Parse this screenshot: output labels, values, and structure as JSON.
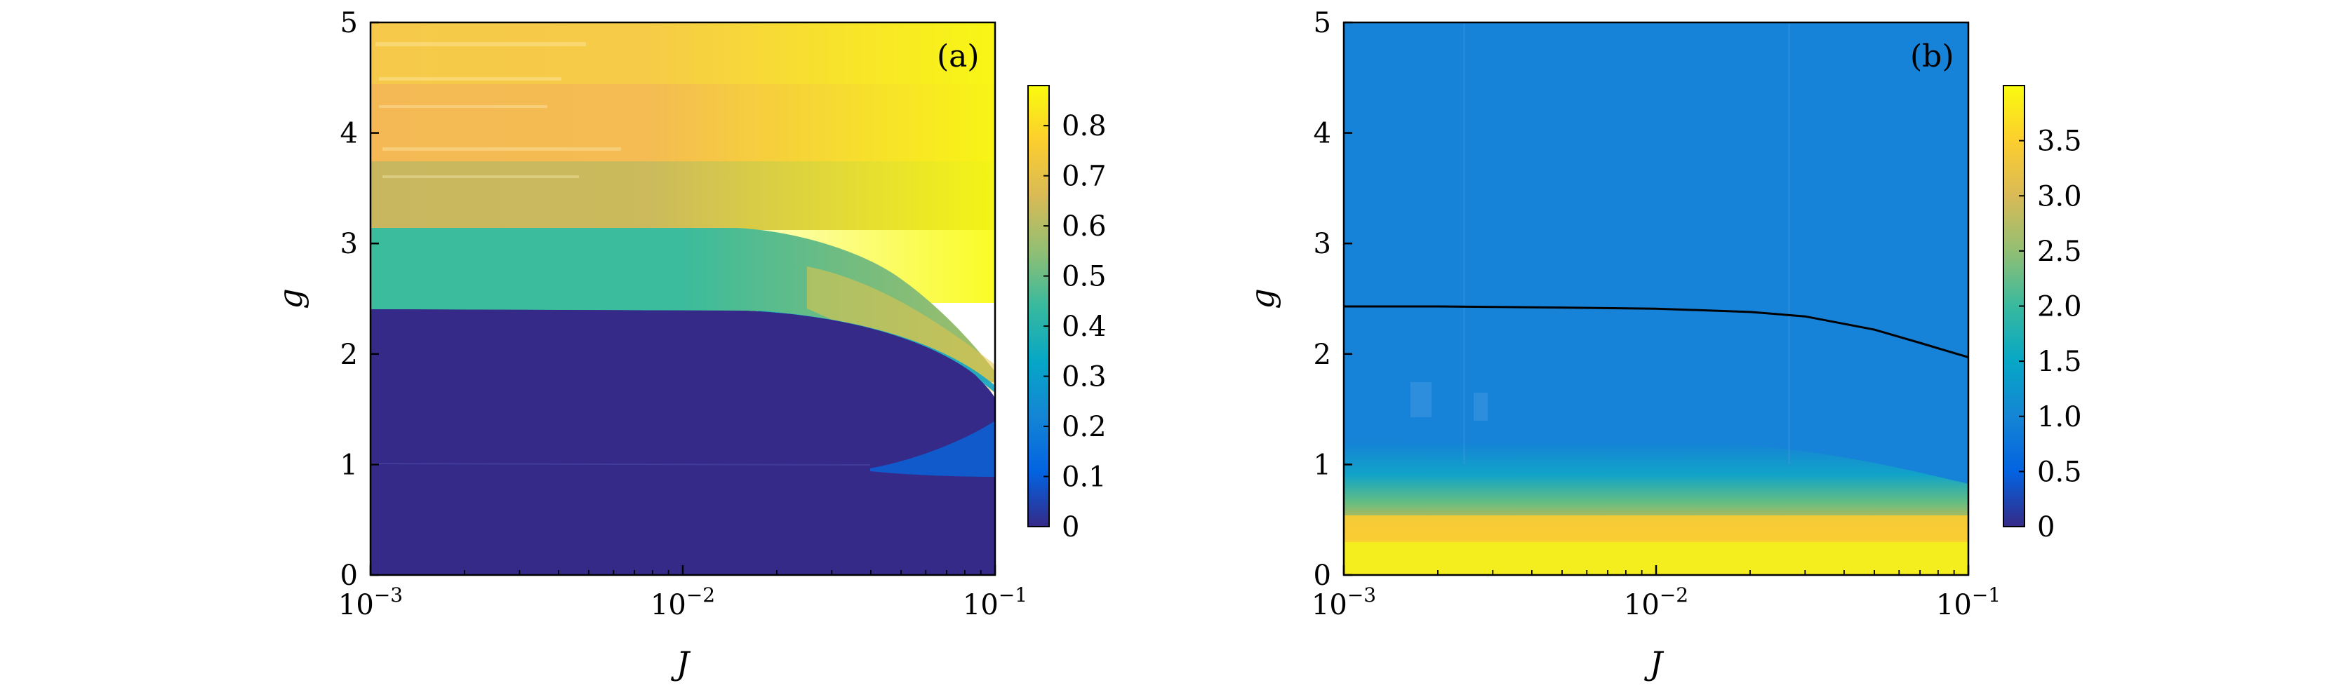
{
  "chart_data": [
    {
      "type": "heatmap",
      "panel_label": "(a)",
      "xlabel": "J",
      "ylabel": "g",
      "x_scale": "log",
      "xlim": [
        0.001,
        0.1
      ],
      "ylim": [
        0,
        5
      ],
      "x_ticks": [
        {
          "value": 0.001,
          "base": "10",
          "exp": "−3"
        },
        {
          "value": 0.01,
          "base": "10",
          "exp": "−2"
        },
        {
          "value": 0.1,
          "base": "10",
          "exp": "−1"
        }
      ],
      "y_ticks": [
        "0",
        "1",
        "2",
        "3",
        "4",
        "5"
      ],
      "colorbar": {
        "min": 0,
        "max": 0.88,
        "ticks": [
          "0",
          "0.1",
          "0.2",
          "0.3",
          "0.4",
          "0.5",
          "0.6",
          "0.7",
          "0.8"
        ]
      },
      "regions": [
        {
          "g_range": [
            0,
            0.9
          ],
          "value": 0.0
        },
        {
          "g_range": [
            0.9,
            2.4
          ],
          "value": 0.0,
          "note": "boundary narrows to tip near g≈1.3 at J=0.1"
        },
        {
          "g_range": [
            2.4,
            3.15
          ],
          "value": 0.42
        },
        {
          "g_range": [
            3.15,
            3.75
          ],
          "value": 0.66
        },
        {
          "g_range": [
            3.75,
            5.0
          ],
          "value": 0.75
        }
      ],
      "grid": false
    },
    {
      "type": "heatmap",
      "panel_label": "(b)",
      "xlabel": "J",
      "ylabel": "g",
      "x_scale": "log",
      "xlim": [
        0.001,
        0.1
      ],
      "ylim": [
        0,
        5
      ],
      "x_ticks": [
        {
          "value": 0.001,
          "base": "10",
          "exp": "−3"
        },
        {
          "value": 0.01,
          "base": "10",
          "exp": "−2"
        },
        {
          "value": 0.1,
          "base": "10",
          "exp": "−1"
        }
      ],
      "y_ticks": [
        "0",
        "1",
        "2",
        "3",
        "4",
        "5"
      ],
      "colorbar": {
        "min": 0,
        "max": 4.0,
        "ticks": [
          "0",
          "0.5",
          "1.0",
          "1.5",
          "2.0",
          "2.5",
          "3.0",
          "3.5"
        ]
      },
      "background_value": 1.05,
      "boundary_curve": {
        "J": [
          0.001,
          0.002,
          0.005,
          0.01,
          0.02,
          0.03,
          0.05,
          0.07,
          0.1
        ],
        "g": [
          2.43,
          2.43,
          2.42,
          2.41,
          2.38,
          2.34,
          2.22,
          2.1,
          1.97
        ]
      },
      "grid": false
    }
  ],
  "colormap": {
    "name": "parula",
    "stops": [
      "#352a87",
      "#0363e1",
      "#1485d4",
      "#06a7c6",
      "#38b99e",
      "#92bf73",
      "#d9ba56",
      "#fcce2e",
      "#f9fb0e"
    ]
  }
}
